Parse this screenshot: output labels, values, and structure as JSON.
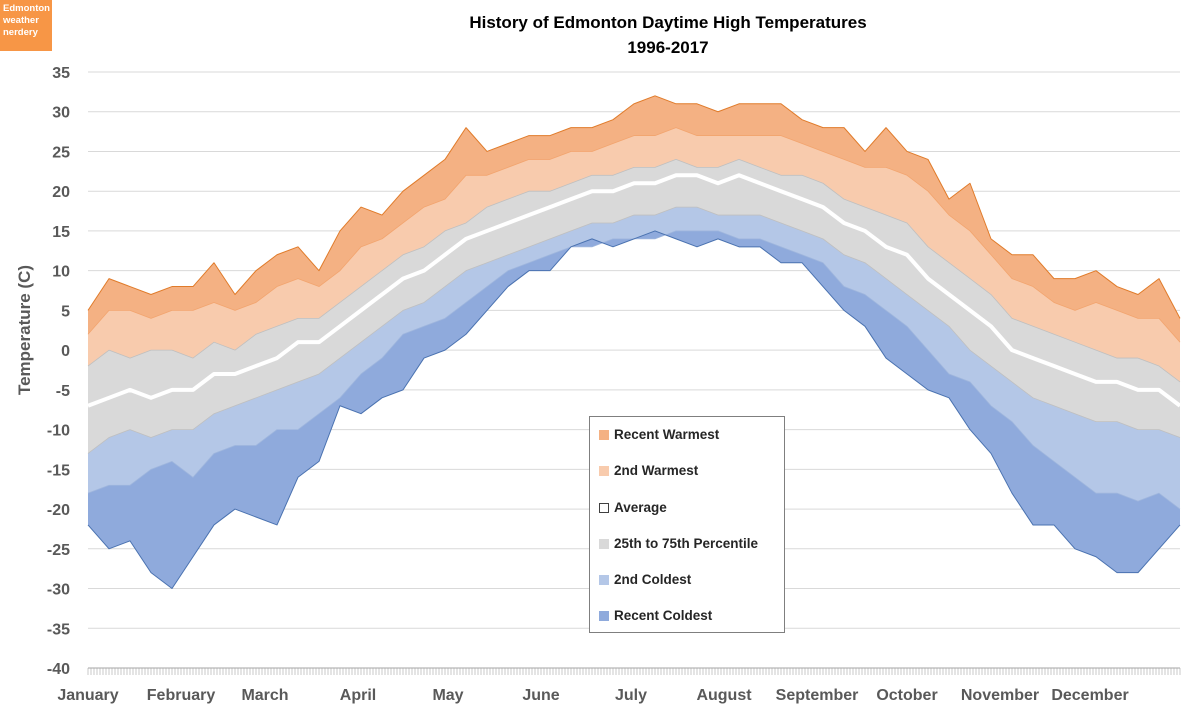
{
  "logo": {
    "lines": [
      "Edmonton",
      "weather",
      "nerdery"
    ]
  },
  "chart_data": {
    "type": "area",
    "title": [
      "History of Edmonton Daytime High Temperatures",
      "1996-2017"
    ],
    "xlabel": "",
    "ylabel": "Temperature (C)",
    "ylim": [
      -40,
      35
    ],
    "yticks": [
      35,
      30,
      25,
      20,
      15,
      10,
      5,
      0,
      -5,
      -10,
      -15,
      -20,
      -25,
      -30,
      -35,
      -40
    ],
    "xlim": [
      1,
      365
    ],
    "xticks": [
      {
        "label": "January",
        "day": 1
      },
      {
        "label": "February",
        "day": 32
      },
      {
        "label": "March",
        "day": 60
      },
      {
        "label": "April",
        "day": 91
      },
      {
        "label": "May",
        "day": 121
      },
      {
        "label": "June",
        "day": 152
      },
      {
        "label": "July",
        "day": 182
      },
      {
        "label": "August",
        "day": 213
      },
      {
        "label": "September",
        "day": 244
      },
      {
        "label": "October",
        "day": 274
      },
      {
        "label": "November",
        "day": 305
      },
      {
        "label": "December",
        "day": 335
      }
    ],
    "grid": true,
    "legend_position": "bottom-center",
    "x_day_of_year": [
      1,
      8,
      15,
      22,
      29,
      36,
      43,
      50,
      57,
      64,
      71,
      78,
      85,
      92,
      99,
      106,
      113,
      120,
      127,
      134,
      141,
      148,
      155,
      162,
      169,
      176,
      183,
      190,
      197,
      204,
      211,
      218,
      225,
      232,
      239,
      246,
      253,
      260,
      267,
      274,
      281,
      288,
      295,
      302,
      309,
      316,
      323,
      330,
      337,
      344,
      351,
      358,
      365
    ],
    "series": [
      {
        "name": "Recent Warmest",
        "color": "#F4B183",
        "values": [
          5,
          9,
          8,
          7,
          8,
          8,
          11,
          7,
          10,
          12,
          13,
          10,
          15,
          18,
          17,
          20,
          22,
          24,
          28,
          25,
          26,
          27,
          27,
          28,
          28,
          29,
          31,
          32,
          31,
          31,
          30,
          31,
          31,
          31,
          29,
          28,
          28,
          25,
          28,
          25,
          24,
          19,
          21,
          14,
          12,
          12,
          9,
          9,
          10,
          8,
          7,
          9,
          4
        ]
      },
      {
        "name": "2nd Warmest",
        "color": "#F8CBAD",
        "values": [
          2,
          5,
          5,
          4,
          5,
          5,
          6,
          5,
          6,
          8,
          9,
          8,
          10,
          13,
          14,
          16,
          18,
          19,
          22,
          22,
          23,
          24,
          24,
          25,
          25,
          26,
          27,
          27,
          28,
          27,
          27,
          27,
          27,
          27,
          26,
          25,
          24,
          23,
          23,
          22,
          20,
          17,
          15,
          12,
          9,
          8,
          6,
          5,
          6,
          5,
          4,
          4,
          1
        ]
      },
      {
        "name": "Average",
        "color": "#FFFFFF",
        "values": [
          -7,
          -6,
          -5,
          -6,
          -5,
          -5,
          -3,
          -3,
          -2,
          -1,
          1,
          1,
          3,
          5,
          7,
          9,
          10,
          12,
          14,
          15,
          16,
          17,
          18,
          19,
          20,
          20,
          21,
          21,
          22,
          22,
          21,
          22,
          21,
          20,
          19,
          18,
          16,
          15,
          13,
          12,
          9,
          7,
          5,
          3,
          0,
          -1,
          -2,
          -3,
          -4,
          -4,
          -5,
          -5,
          -7
        ]
      },
      {
        "name": "25th to 75th Percentile",
        "color": "#D9D9D9",
        "upper": [
          -2,
          0,
          -1,
          0,
          0,
          -1,
          1,
          0,
          2,
          3,
          4,
          4,
          6,
          8,
          10,
          12,
          13,
          15,
          16,
          18,
          19,
          20,
          20,
          21,
          22,
          22,
          23,
          23,
          24,
          23,
          23,
          24,
          23,
          22,
          22,
          21,
          19,
          18,
          17,
          16,
          13,
          11,
          9,
          7,
          4,
          3,
          2,
          1,
          0,
          -1,
          -1,
          -2,
          -4
        ],
        "lower": [
          -13,
          -11,
          -10,
          -11,
          -10,
          -10,
          -8,
          -7,
          -6,
          -5,
          -4,
          -3,
          -1,
          1,
          3,
          5,
          6,
          8,
          10,
          11,
          12,
          13,
          14,
          15,
          16,
          16,
          17,
          17,
          18,
          18,
          17,
          17,
          17,
          16,
          15,
          14,
          12,
          11,
          9,
          7,
          5,
          3,
          0,
          -2,
          -4,
          -6,
          -7,
          -8,
          -9,
          -9,
          -10,
          -10,
          -11
        ]
      },
      {
        "name": "2nd Coldest",
        "color": "#B4C7E7",
        "values": [
          -18,
          -17,
          -17,
          -15,
          -14,
          -16,
          -13,
          -12,
          -12,
          -10,
          -10,
          -8,
          -6,
          -3,
          -1,
          2,
          3,
          4,
          6,
          8,
          10,
          11,
          12,
          13,
          13,
          14,
          14,
          14,
          15,
          15,
          15,
          14,
          14,
          13,
          12,
          11,
          8,
          7,
          5,
          3,
          0,
          -3,
          -4,
          -7,
          -9,
          -12,
          -14,
          -16,
          -18,
          -18,
          -19,
          -18,
          -20
        ]
      },
      {
        "name": "Recent Coldest",
        "color": "#8FAADC",
        "values": [
          -22,
          -25,
          -24,
          -28,
          -30,
          -26,
          -22,
          -20,
          -21,
          -22,
          -16,
          -14,
          -7,
          -8,
          -6,
          -5,
          -1,
          0,
          2,
          5,
          8,
          10,
          10,
          13,
          14,
          13,
          14,
          15,
          14,
          13,
          14,
          13,
          13,
          11,
          11,
          8,
          5,
          3,
          -1,
          -3,
          -5,
          -6,
          -10,
          -13,
          -18,
          -22,
          -22,
          -25,
          -26,
          -28,
          -28,
          -25,
          -22
        ]
      }
    ]
  }
}
